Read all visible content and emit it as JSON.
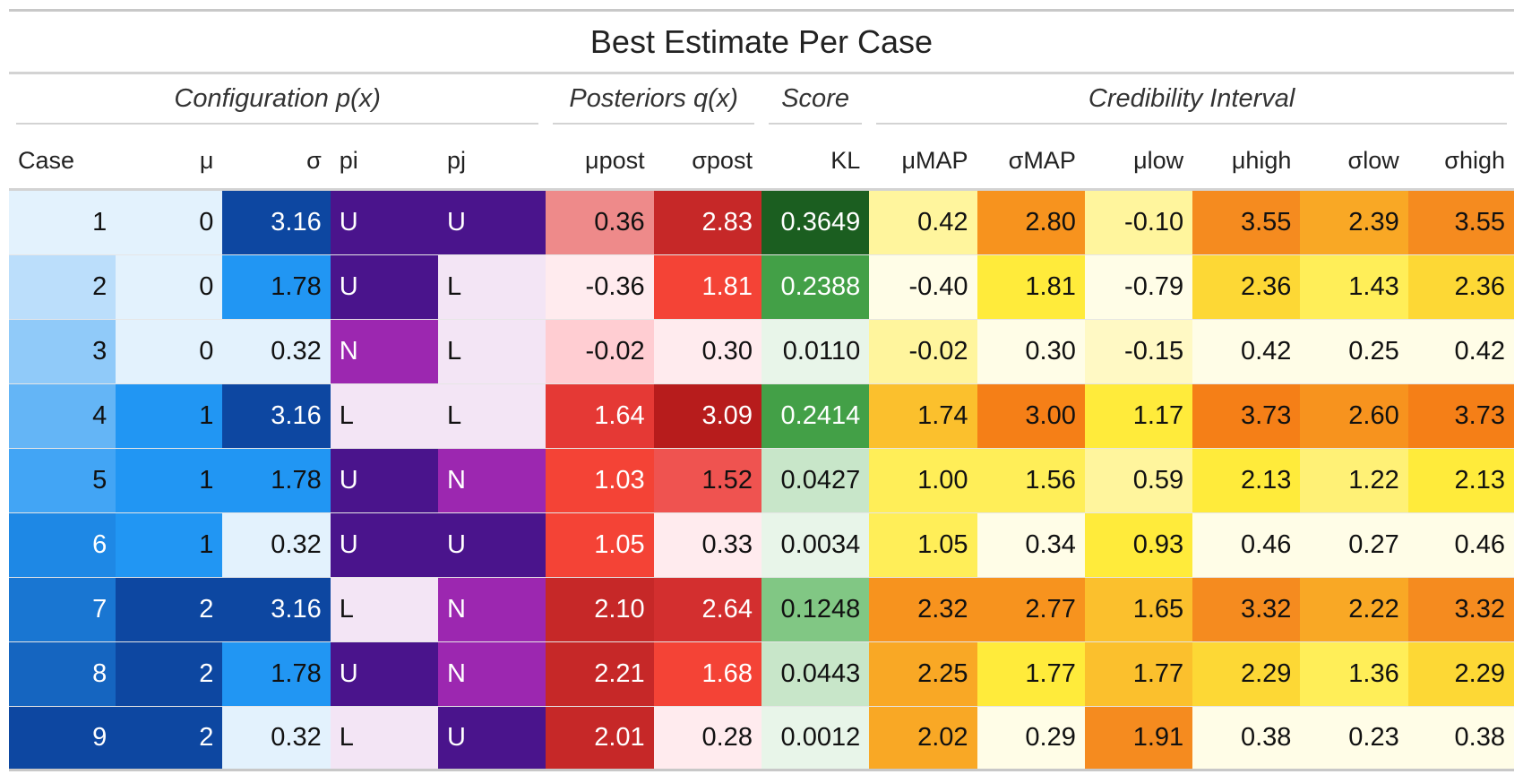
{
  "title": "Best Estimate Per Case",
  "spanners": [
    {
      "label": "Configuration p(x)",
      "span": 5
    },
    {
      "label": "Posteriors q(x)",
      "span": 2
    },
    {
      "label": "Score",
      "span": 1
    },
    {
      "label": "Credibility Interval",
      "span": 6
    }
  ],
  "columns": [
    {
      "key": "case",
      "label": "Case",
      "align": "r",
      "head_align": "l"
    },
    {
      "key": "mu",
      "label": "μ",
      "align": "r",
      "head_align": "r"
    },
    {
      "key": "sigma",
      "label": "σ",
      "align": "r",
      "head_align": "r"
    },
    {
      "key": "pi",
      "label": "pi",
      "align": "l",
      "head_align": "l"
    },
    {
      "key": "pj",
      "label": "pj",
      "align": "l",
      "head_align": "l"
    },
    {
      "key": "mu_post",
      "label": "μpost",
      "align": "r",
      "head_align": "r"
    },
    {
      "key": "sigma_post",
      "label": "σpost",
      "align": "r",
      "head_align": "r"
    },
    {
      "key": "kl",
      "label": "KL",
      "align": "r",
      "head_align": "r"
    },
    {
      "key": "mu_map",
      "label": "μMAP",
      "align": "r",
      "head_align": "r"
    },
    {
      "key": "sigma_map",
      "label": "σMAP",
      "align": "r",
      "head_align": "r"
    },
    {
      "key": "mu_low",
      "label": "μlow",
      "align": "r",
      "head_align": "r"
    },
    {
      "key": "mu_high",
      "label": "μhigh",
      "align": "r",
      "head_align": "r"
    },
    {
      "key": "sigma_low",
      "label": "σlow",
      "align": "r",
      "head_align": "r"
    },
    {
      "key": "sigma_high",
      "label": "σhigh",
      "align": "r",
      "head_align": "r"
    }
  ],
  "rows": [
    {
      "case": {
        "text": "1",
        "bg": "#e3f2fd",
        "fg": "#111111"
      },
      "mu": {
        "text": "0",
        "bg": "#e3f2fd",
        "fg": "#111111"
      },
      "sigma": {
        "text": "3.16",
        "bg": "#0d47a1",
        "fg": "#ffffff"
      },
      "pi": {
        "text": "U",
        "bg": "#4a148c",
        "fg": "#ffffff"
      },
      "pj": {
        "text": "U",
        "bg": "#4a148c",
        "fg": "#ffffff"
      },
      "mu_post": {
        "text": "0.36",
        "bg": "#ee8a8a",
        "fg": "#111111"
      },
      "sigma_post": {
        "text": "2.83",
        "bg": "#c62828",
        "fg": "#ffffff"
      },
      "kl": {
        "text": "0.3649",
        "bg": "#1b5e20",
        "fg": "#ffffff"
      },
      "mu_map": {
        "text": "0.42",
        "bg": "#fff59d",
        "fg": "#111111"
      },
      "sigma_map": {
        "text": "2.80",
        "bg": "#f7931e",
        "fg": "#111111"
      },
      "mu_low": {
        "text": "-0.10",
        "bg": "#fff59d",
        "fg": "#111111"
      },
      "mu_high": {
        "text": "3.55",
        "bg": "#f58b1f",
        "fg": "#111111"
      },
      "sigma_low": {
        "text": "2.39",
        "bg": "#f9a825",
        "fg": "#111111"
      },
      "sigma_high": {
        "text": "3.55",
        "bg": "#f58b1f",
        "fg": "#111111"
      }
    },
    {
      "case": {
        "text": "2",
        "bg": "#bbdefb",
        "fg": "#111111"
      },
      "mu": {
        "text": "0",
        "bg": "#e3f2fd",
        "fg": "#111111"
      },
      "sigma": {
        "text": "1.78",
        "bg": "#2196f3",
        "fg": "#111111"
      },
      "pi": {
        "text": "U",
        "bg": "#4a148c",
        "fg": "#ffffff"
      },
      "pj": {
        "text": "L",
        "bg": "#f3e5f5",
        "fg": "#111111"
      },
      "mu_post": {
        "text": "-0.36",
        "bg": "#ffebee",
        "fg": "#111111"
      },
      "sigma_post": {
        "text": "1.81",
        "bg": "#f44336",
        "fg": "#ffffff"
      },
      "kl": {
        "text": "0.2388",
        "bg": "#43a047",
        "fg": "#ffffff"
      },
      "mu_map": {
        "text": "-0.40",
        "bg": "#fffde7",
        "fg": "#111111"
      },
      "sigma_map": {
        "text": "1.81",
        "bg": "#ffeb3b",
        "fg": "#111111"
      },
      "mu_low": {
        "text": "-0.79",
        "bg": "#fffde7",
        "fg": "#111111"
      },
      "mu_high": {
        "text": "2.36",
        "bg": "#fdd835",
        "fg": "#111111"
      },
      "sigma_low": {
        "text": "1.43",
        "bg": "#ffee58",
        "fg": "#111111"
      },
      "sigma_high": {
        "text": "2.36",
        "bg": "#fdd835",
        "fg": "#111111"
      }
    },
    {
      "case": {
        "text": "3",
        "bg": "#90caf9",
        "fg": "#111111"
      },
      "mu": {
        "text": "0",
        "bg": "#e3f2fd",
        "fg": "#111111"
      },
      "sigma": {
        "text": "0.32",
        "bg": "#e3f2fd",
        "fg": "#111111"
      },
      "pi": {
        "text": "N",
        "bg": "#9c27b0",
        "fg": "#ffffff"
      },
      "pj": {
        "text": "L",
        "bg": "#f3e5f5",
        "fg": "#111111"
      },
      "mu_post": {
        "text": "-0.02",
        "bg": "#ffcdd2",
        "fg": "#111111"
      },
      "sigma_post": {
        "text": "0.30",
        "bg": "#ffebee",
        "fg": "#111111"
      },
      "kl": {
        "text": "0.0110",
        "bg": "#e8f5e9",
        "fg": "#111111"
      },
      "mu_map": {
        "text": "-0.02",
        "bg": "#fff59d",
        "fg": "#111111"
      },
      "sigma_map": {
        "text": "0.30",
        "bg": "#fffde7",
        "fg": "#111111"
      },
      "mu_low": {
        "text": "-0.15",
        "bg": "#fff9c4",
        "fg": "#111111"
      },
      "mu_high": {
        "text": "0.42",
        "bg": "#fffde7",
        "fg": "#111111"
      },
      "sigma_low": {
        "text": "0.25",
        "bg": "#fffde7",
        "fg": "#111111"
      },
      "sigma_high": {
        "text": "0.42",
        "bg": "#fffde7",
        "fg": "#111111"
      }
    },
    {
      "case": {
        "text": "4",
        "bg": "#64b5f6",
        "fg": "#111111"
      },
      "mu": {
        "text": "1",
        "bg": "#2196f3",
        "fg": "#111111"
      },
      "sigma": {
        "text": "3.16",
        "bg": "#0d47a1",
        "fg": "#ffffff"
      },
      "pi": {
        "text": "L",
        "bg": "#f3e5f5",
        "fg": "#111111"
      },
      "pj": {
        "text": "L",
        "bg": "#f3e5f5",
        "fg": "#111111"
      },
      "mu_post": {
        "text": "1.64",
        "bg": "#e53935",
        "fg": "#ffffff"
      },
      "sigma_post": {
        "text": "3.09",
        "bg": "#b71c1c",
        "fg": "#ffffff"
      },
      "kl": {
        "text": "0.2414",
        "bg": "#43a047",
        "fg": "#ffffff"
      },
      "mu_map": {
        "text": "1.74",
        "bg": "#fbc02d",
        "fg": "#111111"
      },
      "sigma_map": {
        "text": "3.00",
        "bg": "#f57f17",
        "fg": "#111111"
      },
      "mu_low": {
        "text": "1.17",
        "bg": "#ffeb3b",
        "fg": "#111111"
      },
      "mu_high": {
        "text": "3.73",
        "bg": "#f57f17",
        "fg": "#111111"
      },
      "sigma_low": {
        "text": "2.60",
        "bg": "#f7931e",
        "fg": "#111111"
      },
      "sigma_high": {
        "text": "3.73",
        "bg": "#f57f17",
        "fg": "#111111"
      }
    },
    {
      "case": {
        "text": "5",
        "bg": "#42a5f5",
        "fg": "#111111"
      },
      "mu": {
        "text": "1",
        "bg": "#2196f3",
        "fg": "#111111"
      },
      "sigma": {
        "text": "1.78",
        "bg": "#2196f3",
        "fg": "#111111"
      },
      "pi": {
        "text": "U",
        "bg": "#4a148c",
        "fg": "#ffffff"
      },
      "pj": {
        "text": "N",
        "bg": "#9c27b0",
        "fg": "#ffffff"
      },
      "mu_post": {
        "text": "1.03",
        "bg": "#f44336",
        "fg": "#ffffff"
      },
      "sigma_post": {
        "text": "1.52",
        "bg": "#ef5350",
        "fg": "#111111"
      },
      "kl": {
        "text": "0.0427",
        "bg": "#c8e6c9",
        "fg": "#111111"
      },
      "mu_map": {
        "text": "1.00",
        "bg": "#ffee58",
        "fg": "#111111"
      },
      "sigma_map": {
        "text": "1.56",
        "bg": "#ffee58",
        "fg": "#111111"
      },
      "mu_low": {
        "text": "0.59",
        "bg": "#fff59d",
        "fg": "#111111"
      },
      "mu_high": {
        "text": "2.13",
        "bg": "#ffeb3b",
        "fg": "#111111"
      },
      "sigma_low": {
        "text": "1.22",
        "bg": "#fff176",
        "fg": "#111111"
      },
      "sigma_high": {
        "text": "2.13",
        "bg": "#ffeb3b",
        "fg": "#111111"
      }
    },
    {
      "case": {
        "text": "6",
        "bg": "#1e88e5",
        "fg": "#ffffff"
      },
      "mu": {
        "text": "1",
        "bg": "#2196f3",
        "fg": "#111111"
      },
      "sigma": {
        "text": "0.32",
        "bg": "#e3f2fd",
        "fg": "#111111"
      },
      "pi": {
        "text": "U",
        "bg": "#4a148c",
        "fg": "#ffffff"
      },
      "pj": {
        "text": "U",
        "bg": "#4a148c",
        "fg": "#ffffff"
      },
      "mu_post": {
        "text": "1.05",
        "bg": "#f44336",
        "fg": "#ffffff"
      },
      "sigma_post": {
        "text": "0.33",
        "bg": "#ffebee",
        "fg": "#111111"
      },
      "kl": {
        "text": "0.0034",
        "bg": "#e8f5e9",
        "fg": "#111111"
      },
      "mu_map": {
        "text": "1.05",
        "bg": "#ffee58",
        "fg": "#111111"
      },
      "sigma_map": {
        "text": "0.34",
        "bg": "#fffde7",
        "fg": "#111111"
      },
      "mu_low": {
        "text": "0.93",
        "bg": "#ffeb3b",
        "fg": "#111111"
      },
      "mu_high": {
        "text": "0.46",
        "bg": "#fffde7",
        "fg": "#111111"
      },
      "sigma_low": {
        "text": "0.27",
        "bg": "#fffde7",
        "fg": "#111111"
      },
      "sigma_high": {
        "text": "0.46",
        "bg": "#fffde7",
        "fg": "#111111"
      }
    },
    {
      "case": {
        "text": "7",
        "bg": "#1976d2",
        "fg": "#ffffff"
      },
      "mu": {
        "text": "2",
        "bg": "#0d47a1",
        "fg": "#ffffff"
      },
      "sigma": {
        "text": "3.16",
        "bg": "#0d47a1",
        "fg": "#ffffff"
      },
      "pi": {
        "text": "L",
        "bg": "#f3e5f5",
        "fg": "#111111"
      },
      "pj": {
        "text": "N",
        "bg": "#9c27b0",
        "fg": "#ffffff"
      },
      "mu_post": {
        "text": "2.10",
        "bg": "#c62828",
        "fg": "#ffffff"
      },
      "sigma_post": {
        "text": "2.64",
        "bg": "#d32f2f",
        "fg": "#ffffff"
      },
      "kl": {
        "text": "0.1248",
        "bg": "#81c784",
        "fg": "#111111"
      },
      "mu_map": {
        "text": "2.32",
        "bg": "#f7931e",
        "fg": "#111111"
      },
      "sigma_map": {
        "text": "2.77",
        "bg": "#f7931e",
        "fg": "#111111"
      },
      "mu_low": {
        "text": "1.65",
        "bg": "#fbc02d",
        "fg": "#111111"
      },
      "mu_high": {
        "text": "3.32",
        "bg": "#f58b1f",
        "fg": "#111111"
      },
      "sigma_low": {
        "text": "2.22",
        "bg": "#f9a825",
        "fg": "#111111"
      },
      "sigma_high": {
        "text": "3.32",
        "bg": "#f58b1f",
        "fg": "#111111"
      }
    },
    {
      "case": {
        "text": "8",
        "bg": "#1565c0",
        "fg": "#ffffff"
      },
      "mu": {
        "text": "2",
        "bg": "#0d47a1",
        "fg": "#ffffff"
      },
      "sigma": {
        "text": "1.78",
        "bg": "#2196f3",
        "fg": "#111111"
      },
      "pi": {
        "text": "U",
        "bg": "#4a148c",
        "fg": "#ffffff"
      },
      "pj": {
        "text": "N",
        "bg": "#9c27b0",
        "fg": "#ffffff"
      },
      "mu_post": {
        "text": "2.21",
        "bg": "#c62828",
        "fg": "#ffffff"
      },
      "sigma_post": {
        "text": "1.68",
        "bg": "#f44336",
        "fg": "#ffffff"
      },
      "kl": {
        "text": "0.0443",
        "bg": "#c8e6c9",
        "fg": "#111111"
      },
      "mu_map": {
        "text": "2.25",
        "bg": "#f9a825",
        "fg": "#111111"
      },
      "sigma_map": {
        "text": "1.77",
        "bg": "#ffeb3b",
        "fg": "#111111"
      },
      "mu_low": {
        "text": "1.77",
        "bg": "#fbc02d",
        "fg": "#111111"
      },
      "mu_high": {
        "text": "2.29",
        "bg": "#fdd835",
        "fg": "#111111"
      },
      "sigma_low": {
        "text": "1.36",
        "bg": "#ffee58",
        "fg": "#111111"
      },
      "sigma_high": {
        "text": "2.29",
        "bg": "#fdd835",
        "fg": "#111111"
      }
    },
    {
      "case": {
        "text": "9",
        "bg": "#0d47a1",
        "fg": "#ffffff"
      },
      "mu": {
        "text": "2",
        "bg": "#0d47a1",
        "fg": "#ffffff"
      },
      "sigma": {
        "text": "0.32",
        "bg": "#e3f2fd",
        "fg": "#111111"
      },
      "pi": {
        "text": "L",
        "bg": "#f3e5f5",
        "fg": "#111111"
      },
      "pj": {
        "text": "U",
        "bg": "#4a148c",
        "fg": "#ffffff"
      },
      "mu_post": {
        "text": "2.01",
        "bg": "#c62828",
        "fg": "#ffffff"
      },
      "sigma_post": {
        "text": "0.28",
        "bg": "#ffebee",
        "fg": "#111111"
      },
      "kl": {
        "text": "0.0012",
        "bg": "#e8f5e9",
        "fg": "#111111"
      },
      "mu_map": {
        "text": "2.02",
        "bg": "#f9a825",
        "fg": "#111111"
      },
      "sigma_map": {
        "text": "0.29",
        "bg": "#fffde7",
        "fg": "#111111"
      },
      "mu_low": {
        "text": "1.91",
        "bg": "#f58b1f",
        "fg": "#111111"
      },
      "mu_high": {
        "text": "0.38",
        "bg": "#fffde7",
        "fg": "#111111"
      },
      "sigma_low": {
        "text": "0.23",
        "bg": "#fffde7",
        "fg": "#111111"
      },
      "sigma_high": {
        "text": "0.38",
        "bg": "#fffde7",
        "fg": "#111111"
      }
    }
  ]
}
